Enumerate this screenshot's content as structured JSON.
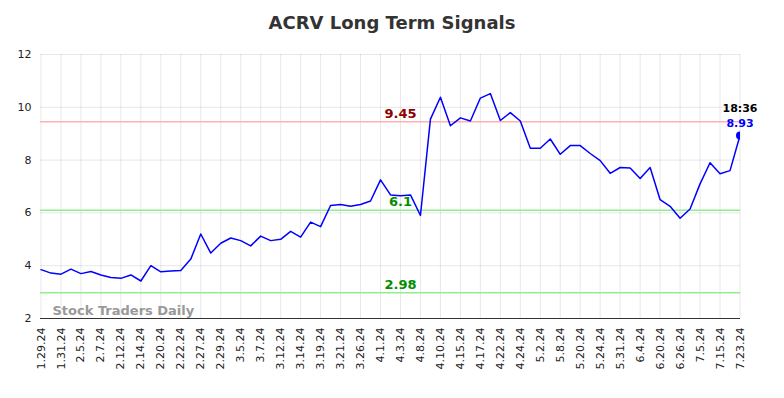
{
  "chart_data": {
    "type": "line",
    "title": "ACRV Long Term Signals",
    "categories": [
      "1.29.24",
      null,
      "1.31.24",
      null,
      "2.5.24",
      null,
      "2.7.24",
      null,
      "2.12.24",
      null,
      "2.14.24",
      null,
      "2.20.24",
      null,
      "2.22.24",
      null,
      "2.27.24",
      null,
      "2.29.24",
      null,
      "3.5.24",
      null,
      "3.7.24",
      null,
      "3.12.24",
      null,
      "3.14.24",
      null,
      "3.19.24",
      null,
      "3.21.24",
      null,
      "3.26.24",
      null,
      "4.1.24",
      null,
      "4.3.24",
      null,
      "4.8.24",
      null,
      "4.10.24",
      null,
      "4.15.24",
      null,
      "4.17.24",
      null,
      "4.22.24",
      null,
      "4.24.24",
      null,
      "5.2.24",
      null,
      "5.8.24",
      null,
      "5.20.24",
      null,
      "5.24.24",
      null,
      "5.31.24",
      null,
      "6.4.24",
      null,
      "6.20.24",
      null,
      "6.26.24",
      null,
      "7.5.24",
      null,
      "7.15.24",
      null,
      "7.23.24"
    ],
    "values": [
      3.85,
      3.72,
      3.68,
      3.87,
      3.7,
      3.78,
      3.65,
      3.55,
      3.52,
      3.65,
      3.42,
      4.0,
      3.77,
      3.8,
      3.82,
      4.25,
      5.2,
      4.48,
      4.85,
      5.05,
      4.95,
      4.75,
      5.12,
      4.95,
      5.0,
      5.3,
      5.08,
      5.65,
      5.48,
      6.28,
      6.32,
      6.25,
      6.32,
      6.45,
      7.25,
      6.68,
      6.65,
      6.68,
      5.9,
      9.55,
      10.38,
      9.3,
      9.6,
      9.48,
      10.35,
      10.52,
      9.5,
      9.8,
      9.48,
      8.45,
      8.45,
      8.8,
      8.22,
      8.55,
      8.55,
      8.25,
      7.98,
      7.5,
      7.72,
      7.7,
      7.3,
      7.72,
      6.5,
      6.25,
      5.8,
      6.15,
      7.1,
      7.9,
      7.48,
      7.6,
      8.93
    ],
    "color": "#0000ff",
    "ylim": [
      2,
      12
    ],
    "yticks": [
      2,
      4,
      6,
      8,
      10,
      12
    ],
    "grid": true,
    "signal_lines": [
      {
        "value": 9.45,
        "label": "9.45",
        "color": "#ffb0b0"
      },
      {
        "value": 6.1,
        "label": "6.1",
        "color": "#90ee90"
      },
      {
        "value": 2.98,
        "label": "2.98",
        "color": "#90ee90"
      }
    ],
    "time_label": "18:36",
    "watermark": "Stock Traders Daily"
  }
}
